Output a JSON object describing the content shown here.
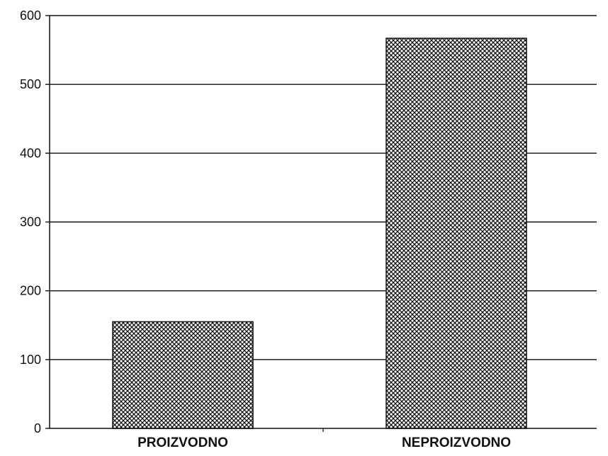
{
  "chart_data": {
    "type": "bar",
    "title": "",
    "xlabel": "",
    "ylabel": "",
    "categories": [
      "PROIZVODNO",
      "NEPROIZVODNO"
    ],
    "values": [
      155,
      567
    ],
    "ylim": [
      0,
      600
    ],
    "yticks": [
      0,
      100,
      200,
      300,
      400,
      500,
      600
    ],
    "grid": true,
    "legend": "none",
    "bar_fill": "crosshatch",
    "colors": {
      "bar_stroke": "#111111",
      "hatch": "#111111",
      "grid": "#111111",
      "background": "#ffffff"
    }
  }
}
